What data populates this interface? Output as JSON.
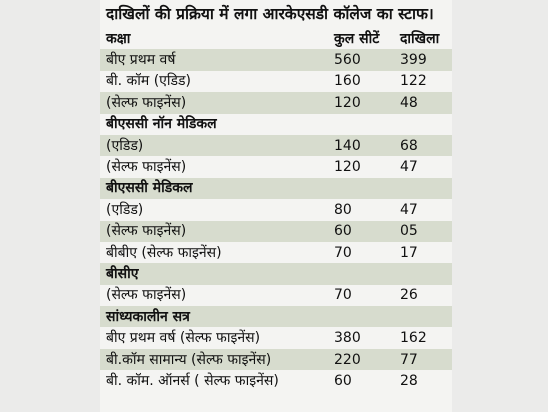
{
  "caption": "दाखिलों की प्रक्रिया में लगा आरकेएसडी कॉलेज का स्टाफ।",
  "headers": {
    "class": "कक्षा",
    "seats": "कुल सीटें",
    "admissions": "दाखिला"
  },
  "rows": [
    {
      "name": "बीए प्रथम वर्ष",
      "seats": "560",
      "admissions": "399"
    },
    {
      "name": "बी. कॉम (एडिड)",
      "seats": "160",
      "admissions": "122"
    },
    {
      "name": "(सेल्फ फाइनेंस)",
      "seats": "120",
      "admissions": "48"
    },
    {
      "name": "बीएससी नॉन मेडिकल",
      "seats": "",
      "admissions": ""
    },
    {
      "name": "(एडिड)",
      "seats": "140",
      "admissions": "68"
    },
    {
      "name": "(सेल्फ फाइनेंस)",
      "seats": "120",
      "admissions": "47"
    },
    {
      "name": "बीएससी मेडिकल",
      "seats": "",
      "admissions": ""
    },
    {
      "name": "(एडिड)",
      "seats": "80",
      "admissions": "47"
    },
    {
      "name": "(सेल्फ फाइनेंस)",
      "seats": "60",
      "admissions": "05"
    },
    {
      "name": "बीबीए (सेल्फ फाइनेंस)",
      "seats": "70",
      "admissions": "17"
    },
    {
      "name": "बीसीए",
      "seats": "",
      "admissions": ""
    },
    {
      "name": "(सेल्फ फाइनेंस)",
      "seats": "70",
      "admissions": "26"
    },
    {
      "name": "सांध्यकालीन सत्र",
      "seats": "",
      "admissions": ""
    },
    {
      "name": "बीए प्रथम वर्ष (सेल्फ फाइनेंस)",
      "seats": "380",
      "admissions": "162"
    },
    {
      "name": "बी.कॉम सामान्य (सेल्फ फाइनेंस)",
      "seats": "220",
      "admissions": "77"
    },
    {
      "name": "बी. कॉम. ऑनर्स ( सेल्फ फाइनेंस)",
      "seats": "60",
      "admissions": "28"
    }
  ],
  "colors": {
    "band": "#d7dcce",
    "paper": "#f4f4f2",
    "text": "#111111"
  }
}
